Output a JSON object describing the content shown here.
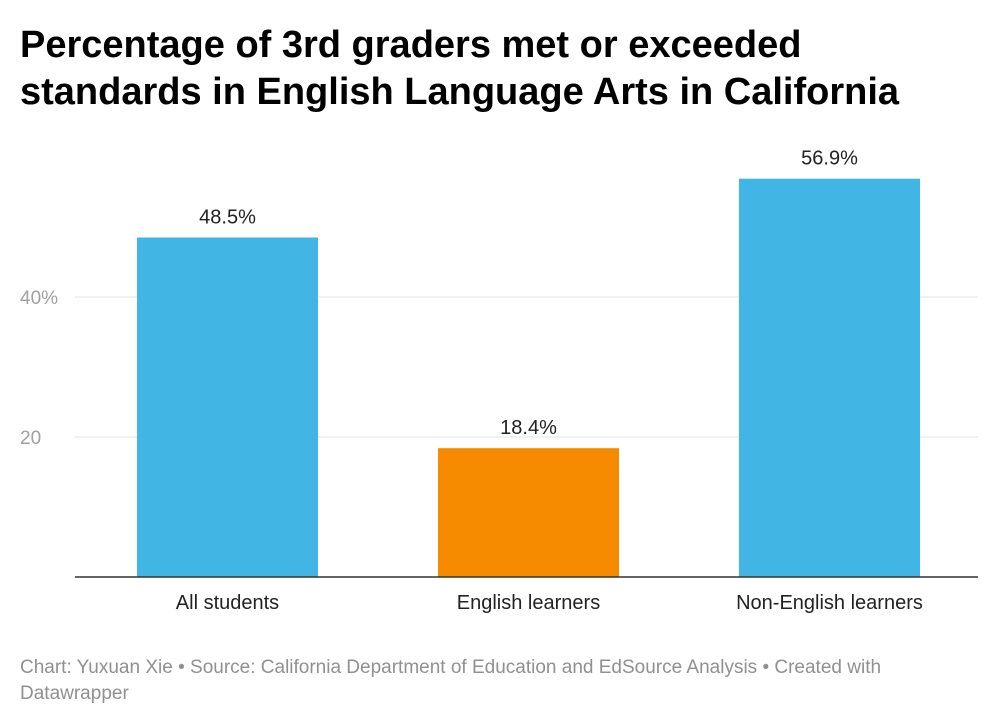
{
  "chart_data": {
    "type": "bar",
    "title": "Percentage of 3rd graders met or exceeded standards in English Language Arts in California",
    "categories": [
      "All students",
      "English learners",
      "Non-English learners"
    ],
    "values": [
      48.5,
      18.4,
      56.9
    ],
    "value_labels": [
      "48.5%",
      "18.4%",
      "56.9%"
    ],
    "colors": [
      "#41b5e3",
      "#f78b00",
      "#41b5e3"
    ],
    "yticks": [
      {
        "value": 20,
        "label": "20"
      },
      {
        "value": 40,
        "label": "40%"
      }
    ],
    "ylim": [
      0,
      60
    ],
    "xlabel": "",
    "ylabel": "",
    "grid": true
  },
  "footer": {
    "text": "Chart: Yuxuan Xie • Source: California Department of Education and EdSource Analysis • Created with Datawrapper"
  }
}
